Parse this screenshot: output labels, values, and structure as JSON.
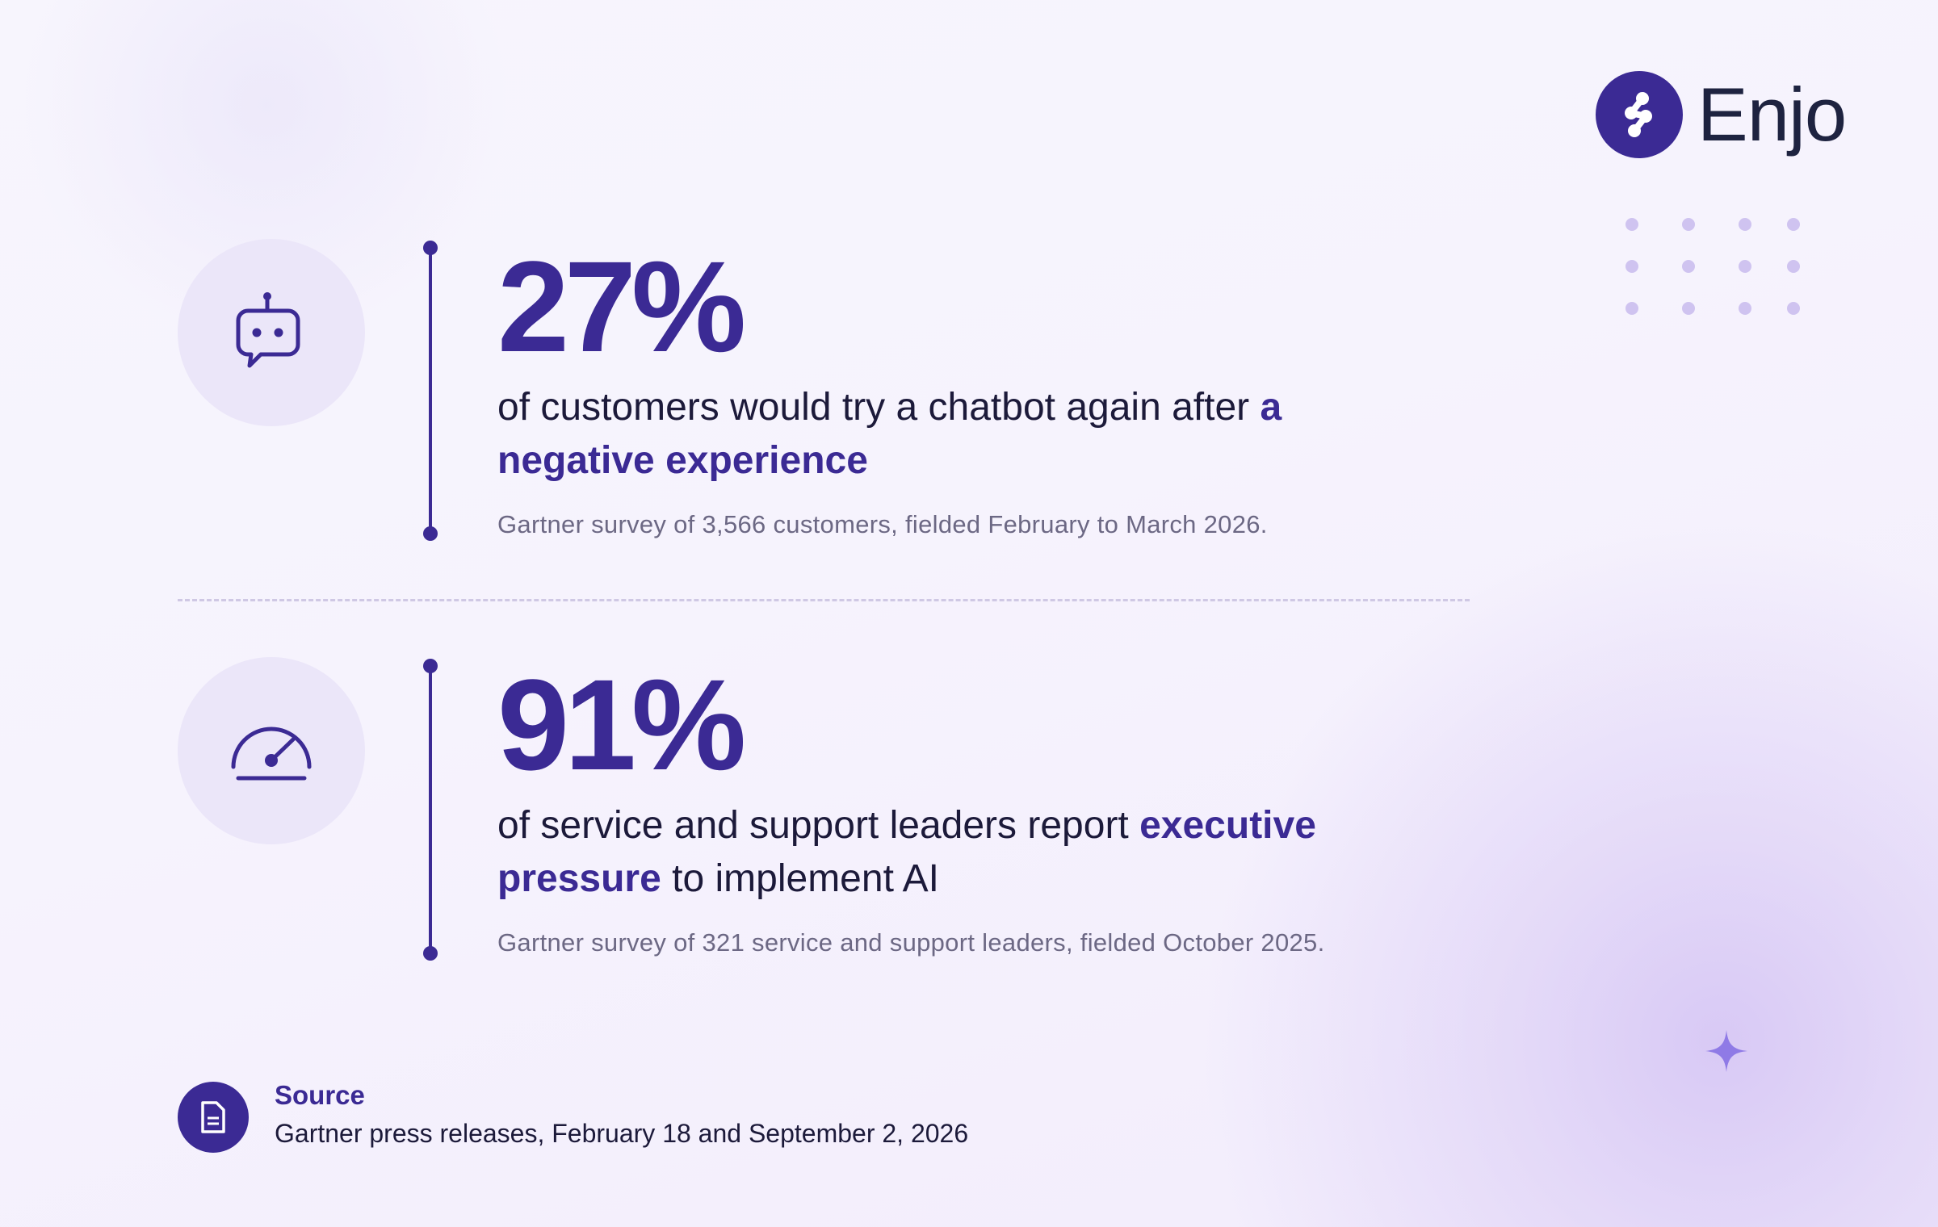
{
  "brand": {
    "name": "Enjo",
    "icon": "enjo-logo-icon"
  },
  "colors": {
    "accent": "#3b2a94",
    "text": "#1c1a3a",
    "muted": "#6c6884",
    "icon_bg": "#ebe6f9"
  },
  "stats": [
    {
      "icon": "chatbot-icon",
      "value": "27%",
      "text_before": "of customers would try a chatbot again after ",
      "highlight": "a negative experience",
      "text_after": "",
      "note": "Gartner survey of 3,566 customers, fielded February to March 2026."
    },
    {
      "icon": "speedometer-icon",
      "value": "91%",
      "text_before": "of service and support leaders report ",
      "highlight": "executive pressure",
      "text_after": " to implement AI",
      "note": "Gartner survey of 321 service and support leaders, fielded October 2025."
    }
  ],
  "source": {
    "icon": "document-icon",
    "label": "Source",
    "text": "Gartner press releases, February 18 and September 2, 2026"
  }
}
